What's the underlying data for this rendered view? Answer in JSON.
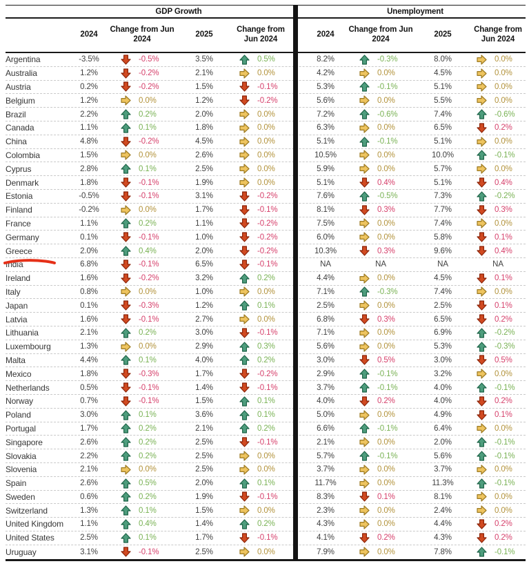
{
  "header": {
    "gdp_title": "GDP Growth",
    "unemp_title": "Unemployment",
    "col_2024": "2024",
    "col_change": "Change from Jun 2024",
    "col_2025": "2025"
  },
  "annotation": {
    "type": "red-pen-underline",
    "target_row": "Greece",
    "color": "#e53018"
  },
  "colors": {
    "up_text": "#79b254",
    "flat_text": "#b2923a",
    "down_text": "#d6406b",
    "arrow": {
      "up": {
        "fill": "#4e9d7d",
        "stroke": "#1d6347"
      },
      "flat": {
        "fill": "#eec45f",
        "stroke": "#9c7a22"
      },
      "down": {
        "fill": "#d14a21",
        "stroke": "#8a2308"
      }
    },
    "rule": "#191919"
  },
  "rows": [
    {
      "country": "Argentina",
      "gdp": {
        "v2024": "-3.5%",
        "dir2024": "down",
        "chg2024": "-0.5%",
        "v2025": "3.5%",
        "dir2025": "up",
        "chg2025": "0.5%"
      },
      "unemp": {
        "v2024": "8.2%",
        "dir2024": "up",
        "chg2024": "-0.3%",
        "v2025": "8.0%",
        "dir2025": "flat",
        "chg2025": "0.0%"
      }
    },
    {
      "country": "Australia",
      "gdp": {
        "v2024": "1.2%",
        "dir2024": "down",
        "chg2024": "-0.2%",
        "v2025": "2.1%",
        "dir2025": "flat",
        "chg2025": "0.0%"
      },
      "unemp": {
        "v2024": "4.2%",
        "dir2024": "flat",
        "chg2024": "0.0%",
        "v2025": "4.5%",
        "dir2025": "flat",
        "chg2025": "0.0%"
      }
    },
    {
      "country": "Austria",
      "gdp": {
        "v2024": "0.2%",
        "dir2024": "down",
        "chg2024": "-0.2%",
        "v2025": "1.5%",
        "dir2025": "down",
        "chg2025": "-0.1%"
      },
      "unemp": {
        "v2024": "5.3%",
        "dir2024": "up",
        "chg2024": "-0.1%",
        "v2025": "5.1%",
        "dir2025": "flat",
        "chg2025": "0.0%"
      }
    },
    {
      "country": "Belgium",
      "gdp": {
        "v2024": "1.2%",
        "dir2024": "flat",
        "chg2024": "0.0%",
        "v2025": "1.2%",
        "dir2025": "down",
        "chg2025": "-0.2%"
      },
      "unemp": {
        "v2024": "5.6%",
        "dir2024": "flat",
        "chg2024": "0.0%",
        "v2025": "5.5%",
        "dir2025": "flat",
        "chg2025": "0.0%"
      }
    },
    {
      "country": "Brazil",
      "gdp": {
        "v2024": "2.2%",
        "dir2024": "up",
        "chg2024": "0.2%",
        "v2025": "2.0%",
        "dir2025": "flat",
        "chg2025": "0.0%"
      },
      "unemp": {
        "v2024": "7.2%",
        "dir2024": "up",
        "chg2024": "-0.6%",
        "v2025": "7.4%",
        "dir2025": "up",
        "chg2025": "-0.6%"
      }
    },
    {
      "country": "Canada",
      "gdp": {
        "v2024": "1.1%",
        "dir2024": "up",
        "chg2024": "0.1%",
        "v2025": "1.8%",
        "dir2025": "flat",
        "chg2025": "0.0%"
      },
      "unemp": {
        "v2024": "6.3%",
        "dir2024": "flat",
        "chg2024": "0.0%",
        "v2025": "6.5%",
        "dir2025": "down",
        "chg2025": "0.2%"
      }
    },
    {
      "country": "China",
      "gdp": {
        "v2024": "4.8%",
        "dir2024": "down",
        "chg2024": "-0.2%",
        "v2025": "4.5%",
        "dir2025": "flat",
        "chg2025": "0.0%"
      },
      "unemp": {
        "v2024": "5.1%",
        "dir2024": "up",
        "chg2024": "-0.1%",
        "v2025": "5.1%",
        "dir2025": "flat",
        "chg2025": "0.0%"
      }
    },
    {
      "country": "Colombia",
      "gdp": {
        "v2024": "1.5%",
        "dir2024": "flat",
        "chg2024": "0.0%",
        "v2025": "2.6%",
        "dir2025": "flat",
        "chg2025": "0.0%"
      },
      "unemp": {
        "v2024": "10.5%",
        "dir2024": "flat",
        "chg2024": "0.0%",
        "v2025": "10.0%",
        "dir2025": "up",
        "chg2025": "-0.1%"
      }
    },
    {
      "country": "Cyprus",
      "gdp": {
        "v2024": "2.8%",
        "dir2024": "up",
        "chg2024": "0.1%",
        "v2025": "2.5%",
        "dir2025": "flat",
        "chg2025": "0.0%"
      },
      "unemp": {
        "v2024": "5.9%",
        "dir2024": "flat",
        "chg2024": "0.0%",
        "v2025": "5.7%",
        "dir2025": "flat",
        "chg2025": "0.0%"
      }
    },
    {
      "country": "Denmark",
      "gdp": {
        "v2024": "1.8%",
        "dir2024": "down",
        "chg2024": "-0.1%",
        "v2025": "1.9%",
        "dir2025": "flat",
        "chg2025": "0.0%"
      },
      "unemp": {
        "v2024": "5.1%",
        "dir2024": "down",
        "chg2024": "0.4%",
        "v2025": "5.1%",
        "dir2025": "down",
        "chg2025": "0.4%"
      }
    },
    {
      "country": "Estonia",
      "gdp": {
        "v2024": "-0.5%",
        "dir2024": "down",
        "chg2024": "-0.1%",
        "v2025": "3.1%",
        "dir2025": "down",
        "chg2025": "-0.2%"
      },
      "unemp": {
        "v2024": "7.6%",
        "dir2024": "up",
        "chg2024": "-0.5%",
        "v2025": "7.3%",
        "dir2025": "up",
        "chg2025": "-0.2%"
      }
    },
    {
      "country": "Finland",
      "gdp": {
        "v2024": "-0.2%",
        "dir2024": "flat",
        "chg2024": "0.0%",
        "v2025": "1.7%",
        "dir2025": "down",
        "chg2025": "-0.1%"
      },
      "unemp": {
        "v2024": "8.1%",
        "dir2024": "down",
        "chg2024": "0.3%",
        "v2025": "7.7%",
        "dir2025": "down",
        "chg2025": "0.3%"
      }
    },
    {
      "country": "France",
      "gdp": {
        "v2024": "1.1%",
        "dir2024": "up",
        "chg2024": "0.2%",
        "v2025": "1.1%",
        "dir2025": "down",
        "chg2025": "-0.2%"
      },
      "unemp": {
        "v2024": "7.5%",
        "dir2024": "flat",
        "chg2024": "0.0%",
        "v2025": "7.4%",
        "dir2025": "flat",
        "chg2025": "0.0%"
      }
    },
    {
      "country": "Germany",
      "gdp": {
        "v2024": "0.1%",
        "dir2024": "down",
        "chg2024": "-0.1%",
        "v2025": "1.0%",
        "dir2025": "down",
        "chg2025": "-0.2%"
      },
      "unemp": {
        "v2024": "6.0%",
        "dir2024": "flat",
        "chg2024": "0.0%",
        "v2025": "5.8%",
        "dir2025": "down",
        "chg2025": "0.1%"
      }
    },
    {
      "country": "Greece",
      "gdp": {
        "v2024": "2.0%",
        "dir2024": "up",
        "chg2024": "0.4%",
        "v2025": "2.0%",
        "dir2025": "down",
        "chg2025": "-0.2%"
      },
      "unemp": {
        "v2024": "10.3%",
        "dir2024": "down",
        "chg2024": "0.3%",
        "v2025": "9.6%",
        "dir2025": "down",
        "chg2025": "0.4%"
      }
    },
    {
      "country": "India",
      "gdp": {
        "v2024": "6.8%",
        "dir2024": "down",
        "chg2024": "-0.1%",
        "v2025": "6.5%",
        "dir2025": "down",
        "chg2025": "-0.1%"
      },
      "unemp": {
        "v2024": "NA",
        "dir2024": "na",
        "chg2024": "NA",
        "v2025": "NA",
        "dir2025": "na",
        "chg2025": "NA"
      }
    },
    {
      "country": "Ireland",
      "gdp": {
        "v2024": "1.6%",
        "dir2024": "down",
        "chg2024": "-0.2%",
        "v2025": "3.2%",
        "dir2025": "up",
        "chg2025": "0.2%"
      },
      "unemp": {
        "v2024": "4.4%",
        "dir2024": "flat",
        "chg2024": "0.0%",
        "v2025": "4.5%",
        "dir2025": "down",
        "chg2025": "0.1%"
      }
    },
    {
      "country": "Italy",
      "gdp": {
        "v2024": "0.8%",
        "dir2024": "flat",
        "chg2024": "0.0%",
        "v2025": "1.0%",
        "dir2025": "flat",
        "chg2025": "0.0%"
      },
      "unemp": {
        "v2024": "7.1%",
        "dir2024": "up",
        "chg2024": "-0.3%",
        "v2025": "7.4%",
        "dir2025": "flat",
        "chg2025": "0.0%"
      }
    },
    {
      "country": "Japan",
      "gdp": {
        "v2024": "0.1%",
        "dir2024": "down",
        "chg2024": "-0.3%",
        "v2025": "1.2%",
        "dir2025": "up",
        "chg2025": "0.1%"
      },
      "unemp": {
        "v2024": "2.5%",
        "dir2024": "flat",
        "chg2024": "0.0%",
        "v2025": "2.5%",
        "dir2025": "down",
        "chg2025": "0.1%"
      }
    },
    {
      "country": "Latvia",
      "gdp": {
        "v2024": "1.6%",
        "dir2024": "down",
        "chg2024": "-0.1%",
        "v2025": "2.7%",
        "dir2025": "flat",
        "chg2025": "0.0%"
      },
      "unemp": {
        "v2024": "6.8%",
        "dir2024": "down",
        "chg2024": "0.3%",
        "v2025": "6.5%",
        "dir2025": "down",
        "chg2025": "0.2%"
      }
    },
    {
      "country": "Lithuania",
      "gdp": {
        "v2024": "2.1%",
        "dir2024": "up",
        "chg2024": "0.2%",
        "v2025": "3.0%",
        "dir2025": "down",
        "chg2025": "-0.1%"
      },
      "unemp": {
        "v2024": "7.1%",
        "dir2024": "flat",
        "chg2024": "0.0%",
        "v2025": "6.9%",
        "dir2025": "up",
        "chg2025": "-0.2%"
      }
    },
    {
      "country": "Luxembourg",
      "gdp": {
        "v2024": "1.3%",
        "dir2024": "flat",
        "chg2024": "0.0%",
        "v2025": "2.9%",
        "dir2025": "up",
        "chg2025": "0.3%"
      },
      "unemp": {
        "v2024": "5.6%",
        "dir2024": "flat",
        "chg2024": "0.0%",
        "v2025": "5.3%",
        "dir2025": "up",
        "chg2025": "-0.3%"
      }
    },
    {
      "country": "Malta",
      "gdp": {
        "v2024": "4.4%",
        "dir2024": "up",
        "chg2024": "0.1%",
        "v2025": "4.0%",
        "dir2025": "up",
        "chg2025": "0.2%"
      },
      "unemp": {
        "v2024": "3.0%",
        "dir2024": "down",
        "chg2024": "0.5%",
        "v2025": "3.0%",
        "dir2025": "down",
        "chg2025": "0.5%"
      }
    },
    {
      "country": "Mexico",
      "gdp": {
        "v2024": "1.8%",
        "dir2024": "down",
        "chg2024": "-0.3%",
        "v2025": "1.7%",
        "dir2025": "down",
        "chg2025": "-0.2%"
      },
      "unemp": {
        "v2024": "2.9%",
        "dir2024": "up",
        "chg2024": "-0.1%",
        "v2025": "3.2%",
        "dir2025": "flat",
        "chg2025": "0.0%"
      }
    },
    {
      "country": "Netherlands",
      "gdp": {
        "v2024": "0.5%",
        "dir2024": "down",
        "chg2024": "-0.1%",
        "v2025": "1.4%",
        "dir2025": "down",
        "chg2025": "-0.1%"
      },
      "unemp": {
        "v2024": "3.7%",
        "dir2024": "up",
        "chg2024": "-0.1%",
        "v2025": "4.0%",
        "dir2025": "up",
        "chg2025": "-0.1%"
      }
    },
    {
      "country": "Norway",
      "gdp": {
        "v2024": "0.7%",
        "dir2024": "down",
        "chg2024": "-0.1%",
        "v2025": "1.5%",
        "dir2025": "up",
        "chg2025": "0.1%"
      },
      "unemp": {
        "v2024": "4.0%",
        "dir2024": "down",
        "chg2024": "0.2%",
        "v2025": "4.0%",
        "dir2025": "down",
        "chg2025": "0.2%"
      }
    },
    {
      "country": "Poland",
      "gdp": {
        "v2024": "3.0%",
        "dir2024": "up",
        "chg2024": "0.1%",
        "v2025": "3.6%",
        "dir2025": "up",
        "chg2025": "0.1%"
      },
      "unemp": {
        "v2024": "5.0%",
        "dir2024": "flat",
        "chg2024": "0.0%",
        "v2025": "4.9%",
        "dir2025": "down",
        "chg2025": "0.1%"
      }
    },
    {
      "country": "Portugal",
      "gdp": {
        "v2024": "1.7%",
        "dir2024": "up",
        "chg2024": "0.2%",
        "v2025": "2.1%",
        "dir2025": "up",
        "chg2025": "0.2%"
      },
      "unemp": {
        "v2024": "6.6%",
        "dir2024": "up",
        "chg2024": "-0.1%",
        "v2025": "6.4%",
        "dir2025": "flat",
        "chg2025": "0.0%"
      }
    },
    {
      "country": "Singapore",
      "gdp": {
        "v2024": "2.6%",
        "dir2024": "up",
        "chg2024": "0.2%",
        "v2025": "2.5%",
        "dir2025": "down",
        "chg2025": "-0.1%"
      },
      "unemp": {
        "v2024": "2.1%",
        "dir2024": "flat",
        "chg2024": "0.0%",
        "v2025": "2.0%",
        "dir2025": "up",
        "chg2025": "-0.1%"
      }
    },
    {
      "country": "Slovakia",
      "gdp": {
        "v2024": "2.2%",
        "dir2024": "up",
        "chg2024": "0.2%",
        "v2025": "2.5%",
        "dir2025": "flat",
        "chg2025": "0.0%"
      },
      "unemp": {
        "v2024": "5.7%",
        "dir2024": "up",
        "chg2024": "-0.1%",
        "v2025": "5.6%",
        "dir2025": "up",
        "chg2025": "-0.1%"
      }
    },
    {
      "country": "Slovenia",
      "gdp": {
        "v2024": "2.1%",
        "dir2024": "flat",
        "chg2024": "0.0%",
        "v2025": "2.5%",
        "dir2025": "flat",
        "chg2025": "0.0%"
      },
      "unemp": {
        "v2024": "3.7%",
        "dir2024": "flat",
        "chg2024": "0.0%",
        "v2025": "3.7%",
        "dir2025": "flat",
        "chg2025": "0.0%"
      }
    },
    {
      "country": "Spain",
      "gdp": {
        "v2024": "2.6%",
        "dir2024": "up",
        "chg2024": "0.5%",
        "v2025": "2.0%",
        "dir2025": "up",
        "chg2025": "0.1%"
      },
      "unemp": {
        "v2024": "11.7%",
        "dir2024": "flat",
        "chg2024": "0.0%",
        "v2025": "11.3%",
        "dir2025": "up",
        "chg2025": "-0.1%"
      }
    },
    {
      "country": "Sweden",
      "gdp": {
        "v2024": "0.6%",
        "dir2024": "up",
        "chg2024": "0.2%",
        "v2025": "1.9%",
        "dir2025": "down",
        "chg2025": "-0.1%"
      },
      "unemp": {
        "v2024": "8.3%",
        "dir2024": "down",
        "chg2024": "0.1%",
        "v2025": "8.1%",
        "dir2025": "flat",
        "chg2025": "0.0%"
      }
    },
    {
      "country": "Switzerland",
      "gdp": {
        "v2024": "1.3%",
        "dir2024": "up",
        "chg2024": "0.1%",
        "v2025": "1.5%",
        "dir2025": "flat",
        "chg2025": "0.0%"
      },
      "unemp": {
        "v2024": "2.3%",
        "dir2024": "flat",
        "chg2024": "0.0%",
        "v2025": "2.4%",
        "dir2025": "flat",
        "chg2025": "0.0%"
      }
    },
    {
      "country": "United Kingdom",
      "gdp": {
        "v2024": "1.1%",
        "dir2024": "up",
        "chg2024": "0.4%",
        "v2025": "1.4%",
        "dir2025": "up",
        "chg2025": "0.2%"
      },
      "unemp": {
        "v2024": "4.3%",
        "dir2024": "flat",
        "chg2024": "0.0%",
        "v2025": "4.4%",
        "dir2025": "down",
        "chg2025": "0.2%"
      }
    },
    {
      "country": "United States",
      "gdp": {
        "v2024": "2.5%",
        "dir2024": "up",
        "chg2024": "0.1%",
        "v2025": "1.7%",
        "dir2025": "down",
        "chg2025": "-0.1%"
      },
      "unemp": {
        "v2024": "4.1%",
        "dir2024": "down",
        "chg2024": "0.2%",
        "v2025": "4.3%",
        "dir2025": "down",
        "chg2025": "0.2%"
      }
    },
    {
      "country": "Uruguay",
      "gdp": {
        "v2024": "3.1%",
        "dir2024": "down",
        "chg2024": "-0.1%",
        "v2025": "2.5%",
        "dir2025": "flat",
        "chg2025": "0.0%"
      },
      "unemp": {
        "v2024": "7.9%",
        "dir2024": "flat",
        "chg2024": "0.0%",
        "v2025": "7.8%",
        "dir2025": "up",
        "chg2025": "-0.1%"
      }
    }
  ]
}
